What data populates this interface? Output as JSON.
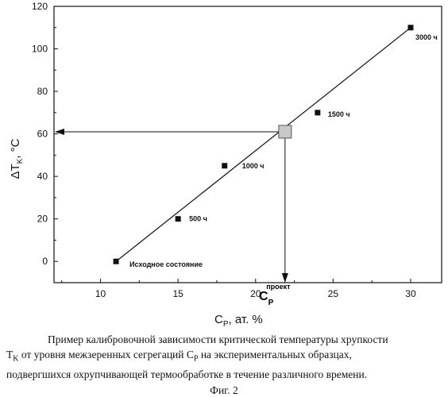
{
  "chart_data": {
    "type": "scatter",
    "xlabel": "C",
    "xlabel_sub": "P",
    "xlabel_suffix": ", ат. %",
    "ylabel": "ΔT",
    "ylabel_sub": "K",
    "ylabel_suffix": ", °C",
    "xlim": [
      7,
      32
    ],
    "ylim": [
      -10,
      120
    ],
    "xticks": [
      10,
      15,
      20,
      25,
      30
    ],
    "yticks": [
      0,
      20,
      40,
      60,
      80,
      100,
      120
    ],
    "points": [
      {
        "x": 11,
        "y": 0,
        "label": "Исходное состояние"
      },
      {
        "x": 15,
        "y": 20,
        "label": "500 ч"
      },
      {
        "x": 18,
        "y": 45,
        "label": "1000 ч"
      },
      {
        "x": 24,
        "y": 70,
        "label": "1500 ч"
      },
      {
        "x": 30,
        "y": 110,
        "label": "3000 ч"
      }
    ],
    "fit_line": {
      "x": [
        11,
        30
      ],
      "y": [
        0,
        110
      ]
    },
    "projection_point": {
      "x": 21.9,
      "y": 61
    },
    "projection_label": {
      "main": "C",
      "sub": "P",
      "sup": "проект"
    },
    "legend": "none",
    "grid": false
  },
  "caption": {
    "line1": "Пример калибровочной зависимости  критической температуры хрупкости",
    "line2_a": "T",
    "line2_sub_a": "K",
    "line2_b": " от уровня межзеренных сегрегаций C",
    "line2_sub_b": "P",
    "line2_c": " на экспериментальных образцах,",
    "line3": "подвергшихся охрупчивающей термообработке в течение различного времени.",
    "figure": "Фиг. 2"
  }
}
